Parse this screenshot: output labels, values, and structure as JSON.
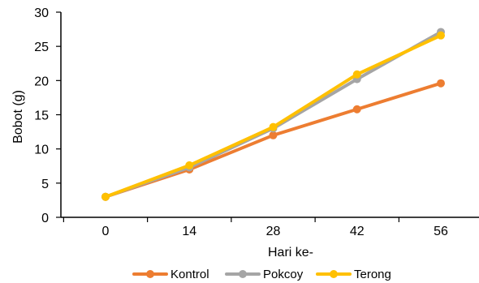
{
  "chart_data": {
    "type": "line",
    "x": [
      0,
      14,
      28,
      42,
      56
    ],
    "categories": [
      "0",
      "14",
      "28",
      "42",
      "56"
    ],
    "xlabel": "Hari ke-",
    "ylabel": "Bobot (g)",
    "ylim": [
      0,
      30
    ],
    "yticks": [
      0,
      5,
      10,
      15,
      20,
      25,
      30
    ],
    "grid": false,
    "legend": "bottom",
    "series": [
      {
        "name": "Kontrol",
        "color": "#ED7D31",
        "values": [
          3.0,
          7.0,
          12.0,
          15.8,
          19.6
        ]
      },
      {
        "name": "Pokcoy",
        "color": "#A5A5A5",
        "values": [
          3.0,
          7.3,
          13.0,
          20.2,
          27.1
        ]
      },
      {
        "name": "Terong",
        "color": "#FFC000",
        "values": [
          3.0,
          7.6,
          13.2,
          20.9,
          26.6
        ]
      }
    ]
  }
}
